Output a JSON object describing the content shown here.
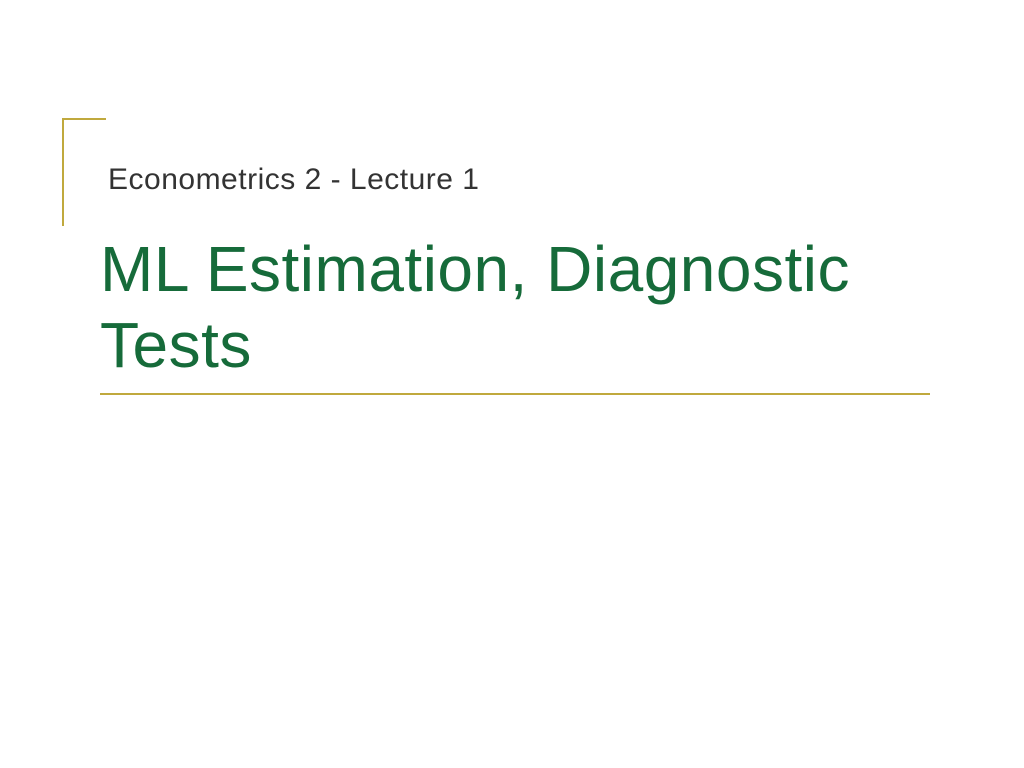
{
  "slide": {
    "subtitle": "Econometrics 2 - Lecture 1",
    "title": "ML Estimation, Diagnostic Tests",
    "subtitle_color": "#333333",
    "title_color": "#166b3a",
    "accent_color": "#c0a93e",
    "background_color": "#ffffff",
    "title_fontsize": 64,
    "subtitle_fontsize": 30,
    "font_family": "Verdana"
  }
}
